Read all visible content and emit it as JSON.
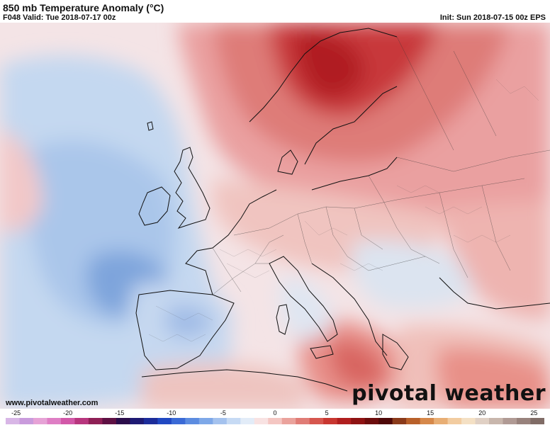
{
  "header": {
    "title": "850 mb Temperature Anomaly (°C)",
    "valid": "F048 Valid: Tue 2018-07-17 00z",
    "init": "Init: Sun 2018-07-15 00z EPS"
  },
  "footer": {
    "url": "www.pivotalweather.com",
    "brand": "pivotal weather"
  },
  "colorbar": {
    "ticks": [
      "-25",
      "-20",
      "-15",
      "-10",
      "-5",
      "0",
      "5",
      "10",
      "15",
      "20",
      "25"
    ],
    "min": -26,
    "max": 26,
    "colors": [
      "#d8b6e6",
      "#c99bdc",
      "#e6a2d6",
      "#de7ec4",
      "#d258a8",
      "#b8367e",
      "#8e1f55",
      "#5e1043",
      "#2b0d4a",
      "#1e1a73",
      "#1c2c9a",
      "#2048c2",
      "#3a6ad6",
      "#5c8ce0",
      "#7ea8e8",
      "#a4c2ee",
      "#c6daf4",
      "#e2ecf8",
      "#f8e2e2",
      "#f4c6c2",
      "#eaa29c",
      "#e07c76",
      "#d6564e",
      "#c83630",
      "#b01e1e",
      "#8e1212",
      "#6c0c0c",
      "#4e0808",
      "#8a3a1a",
      "#b8602a",
      "#d6884a",
      "#e8ae74",
      "#f2cca0",
      "#f4e0c4",
      "#e0d0c4",
      "#c8b6ac",
      "#b09a94",
      "#98827c",
      "#806c66"
    ]
  },
  "map": {
    "ocean_color": "#cfe0f2",
    "land_color": "#f2d4d0",
    "warm_core_color": "#b81e24",
    "cool_core_color": "#5c86cc"
  }
}
